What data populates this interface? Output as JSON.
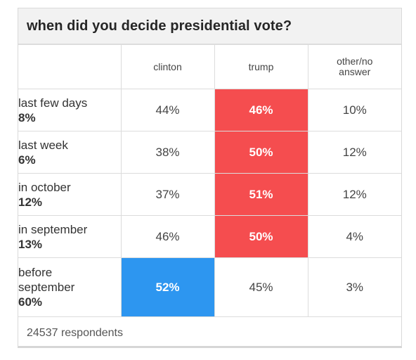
{
  "colors": {
    "trump": "#f54d4f",
    "clinton": "#2d96f0"
  },
  "chart_data": {
    "type": "table",
    "title": "when did you decide presidential vote?",
    "columns": [
      "clinton",
      "trump",
      "other/no answer"
    ],
    "rows": [
      {
        "label": "last few days",
        "share": "8%",
        "values": [
          "44%",
          "46%",
          "10%"
        ],
        "winner": "trump"
      },
      {
        "label": "last week",
        "share": "6%",
        "values": [
          "38%",
          "50%",
          "12%"
        ],
        "winner": "trump"
      },
      {
        "label": "in october",
        "share": "12%",
        "values": [
          "37%",
          "51%",
          "12%"
        ],
        "winner": "trump"
      },
      {
        "label": "in september",
        "share": "13%",
        "values": [
          "46%",
          "50%",
          "4%"
        ],
        "winner": "trump"
      },
      {
        "label": "before september",
        "share": "60%",
        "values": [
          "52%",
          "45%",
          "3%"
        ],
        "winner": "clinton"
      }
    ],
    "footer": "24537 respondents"
  }
}
